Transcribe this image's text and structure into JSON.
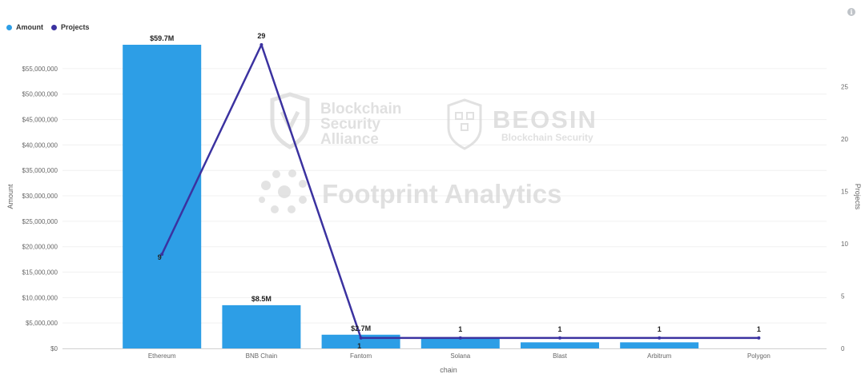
{
  "info_icon": "i",
  "legend": [
    {
      "label": "Amount",
      "color": "#2d9ee6"
    },
    {
      "label": "Projects",
      "color": "#3b32a0"
    }
  ],
  "watermarks": {
    "bsa_line1": "Blockchain",
    "bsa_line2": "Security",
    "bsa_line3": "Alliance",
    "beosin": "BEOSIN",
    "beosin_sub": "Blockchain Security",
    "footprint": "Footprint Analytics"
  },
  "chart_data": {
    "type": "bar",
    "categories": [
      "Ethereum",
      "BNB Chain",
      "Fantom",
      "Solana",
      "Blast",
      "Arbitrum",
      "Polygon"
    ],
    "series": [
      {
        "name": "Amount",
        "type": "bar",
        "axis": "left",
        "color": "#2d9ee6",
        "values": [
          59700000,
          8500000,
          2700000,
          2000000,
          1200000,
          1200000,
          0
        ],
        "labels": [
          "$59.7M",
          "$8.5M",
          "$2.7M",
          "",
          "",
          "",
          ""
        ]
      },
      {
        "name": "Projects",
        "type": "line",
        "axis": "right",
        "color": "#3b32a0",
        "values": [
          9,
          29,
          1,
          1,
          1,
          1,
          1
        ],
        "labels": [
          "9",
          "29",
          "1",
          "1",
          "1",
          "1",
          "1"
        ]
      }
    ],
    "xlabel": "chain",
    "ylabel_left": "Amount",
    "ylabel_right": "Projects",
    "ylim_left": [
      0,
      59700000
    ],
    "ylim_right": [
      0,
      29
    ],
    "yticks_left": [
      0,
      5000000,
      10000000,
      15000000,
      20000000,
      25000000,
      30000000,
      35000000,
      40000000,
      45000000,
      50000000,
      55000000
    ],
    "yticks_left_labels": [
      "$0",
      "$5,000,000",
      "$10,000,000",
      "$15,000,000",
      "$20,000,000",
      "$25,000,000",
      "$30,000,000",
      "$35,000,000",
      "$40,000,000",
      "$45,000,000",
      "$50,000,000",
      "$55,000,000"
    ],
    "yticks_right": [
      0,
      5,
      10,
      15,
      20,
      25
    ],
    "yticks_right_labels": [
      "0",
      "5",
      "10",
      "15",
      "20",
      "25"
    ],
    "legend_position": "top-left",
    "grid": true
  }
}
